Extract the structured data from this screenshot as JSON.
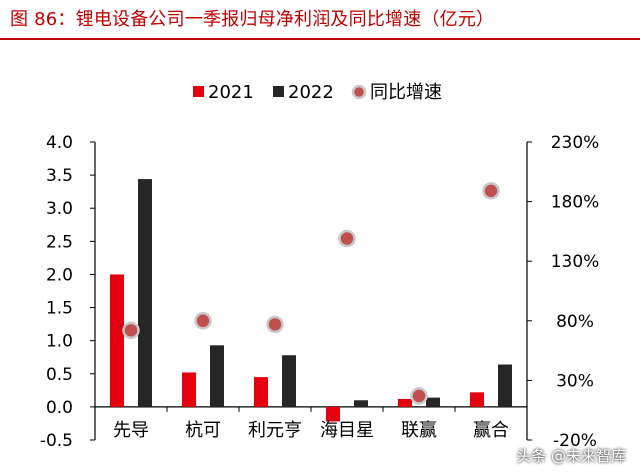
{
  "title": "图 86：锂电设备公司一季报归母净利润及同比增速（亿元）",
  "watermark": "头条 @未来智库",
  "chart_data": {
    "type": "bar",
    "categories": [
      "先导",
      "杭可",
      "利元亨",
      "海目星",
      "联赢",
      "赢合"
    ],
    "series": [
      {
        "name": "2021",
        "kind": "bar",
        "axis": "left",
        "color": "#e3000f",
        "values": [
          2.0,
          0.52,
          0.45,
          -0.22,
          0.12,
          0.22
        ]
      },
      {
        "name": "2022",
        "kind": "bar",
        "axis": "left",
        "color": "#262626",
        "values": [
          3.44,
          0.93,
          0.78,
          0.1,
          0.14,
          0.64
        ]
      },
      {
        "name": "同比增速",
        "kind": "scatter",
        "axis": "right",
        "color": "#c0504d",
        "values": [
          0.72,
          0.8,
          0.77,
          1.49,
          0.17,
          1.89
        ]
      }
    ],
    "left_axis": {
      "min": -0.5,
      "max": 4.0,
      "ticks": [
        "-0.5",
        "0.0",
        "0.5",
        "1.0",
        "1.5",
        "2.0",
        "2.5",
        "3.0",
        "3.5",
        "4.0"
      ]
    },
    "right_axis": {
      "min": -0.2,
      "max": 2.3,
      "ticks": [
        "-20%",
        "30%",
        "80%",
        "130%",
        "180%",
        "230%"
      ]
    },
    "legend": {
      "position": "top",
      "items": [
        "2021",
        "2022",
        "同比增速"
      ]
    },
    "grid": false
  }
}
